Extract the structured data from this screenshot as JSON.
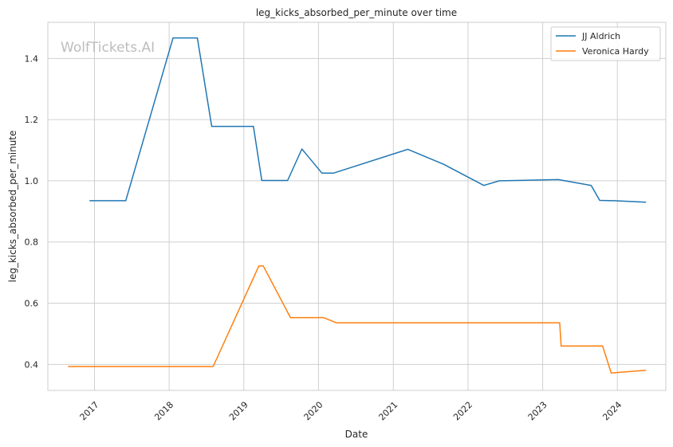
{
  "chart_data": {
    "type": "line",
    "title": "leg_kicks_absorbed_per_minute over time",
    "xlabel": "Date",
    "ylabel": "leg_kicks_absorbed_per_minute",
    "watermark": "WolfTickets.AI",
    "x_range": [
      "2016-05-18",
      "2024-08-25"
    ],
    "ylim": [
      0.315,
      1.518
    ],
    "y_ticks": [
      0.4,
      0.6,
      0.8,
      1.0,
      1.2,
      1.4
    ],
    "y_tick_labels": [
      "0.4",
      "0.6",
      "0.8",
      "1.0",
      "1.2",
      "1.4"
    ],
    "x_ticks": [
      "2017-01-01",
      "2018-01-01",
      "2019-01-01",
      "2020-01-01",
      "2021-01-01",
      "2022-01-01",
      "2023-01-01",
      "2024-01-01"
    ],
    "x_tick_labels": [
      "2017",
      "2018",
      "2019",
      "2020",
      "2021",
      "2022",
      "2023",
      "2024"
    ],
    "grid": true,
    "legend_position": "top-right",
    "series": [
      {
        "name": "JJ Aldrich",
        "color": "#1f77b4",
        "points": [
          [
            "2016-12-10",
            0.935
          ],
          [
            "2017-06-03",
            0.935
          ],
          [
            "2018-01-20",
            1.467
          ],
          [
            "2018-05-19",
            1.467
          ],
          [
            "2018-07-28",
            1.178
          ],
          [
            "2019-02-17",
            1.178
          ],
          [
            "2019-03-30",
            1.001
          ],
          [
            "2019-08-03",
            1.001
          ],
          [
            "2019-10-12",
            1.104
          ],
          [
            "2020-01-18",
            1.025
          ],
          [
            "2020-03-14",
            1.025
          ],
          [
            "2021-03-13",
            1.103
          ],
          [
            "2021-09-04",
            1.054
          ],
          [
            "2022-03-19",
            0.985
          ],
          [
            "2022-06-04",
            1.0
          ],
          [
            "2023-03-18",
            1.004
          ],
          [
            "2023-08-26",
            0.985
          ],
          [
            "2023-10-07",
            0.936
          ],
          [
            "2023-12-16",
            0.935
          ],
          [
            "2024-05-18",
            0.93
          ]
        ]
      },
      {
        "name": "Veronica Hardy",
        "color": "#ff7f0e",
        "points": [
          [
            "2016-08-27",
            0.393
          ],
          [
            "2018-08-04",
            0.393
          ],
          [
            "2019-03-16",
            0.722
          ],
          [
            "2019-04-06",
            0.722
          ],
          [
            "2019-08-17",
            0.553
          ],
          [
            "2020-01-25",
            0.553
          ],
          [
            "2020-03-28",
            0.536
          ],
          [
            "2023-03-25",
            0.536
          ],
          [
            "2023-04-01",
            0.46
          ],
          [
            "2023-10-21",
            0.46
          ],
          [
            "2023-12-02",
            0.372
          ],
          [
            "2024-05-18",
            0.381
          ]
        ]
      }
    ]
  }
}
